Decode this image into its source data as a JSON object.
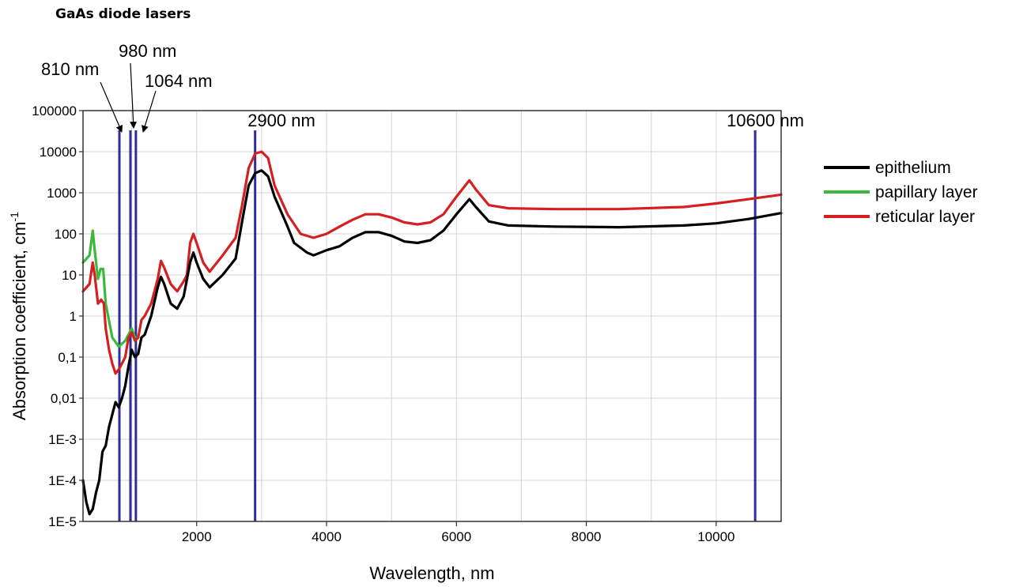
{
  "title": "GaAs diode lasers",
  "chart_data": {
    "type": "line",
    "xlabel": "Wavelength, nm",
    "ylabel": "Absorption coefficient, cm",
    "ylabel_sup": "-1",
    "xlim": [
      250,
      11000
    ],
    "ylim": [
      1e-05,
      100000
    ],
    "yscale": "log",
    "grid": true,
    "xticks": [
      {
        "v": 2000,
        "label": "2000"
      },
      {
        "v": 4000,
        "label": "4000"
      },
      {
        "v": 6000,
        "label": "6000"
      },
      {
        "v": 8000,
        "label": "8000"
      },
      {
        "v": 10000,
        "label": "10000"
      }
    ],
    "yticks": [
      {
        "v": 100000,
        "label": "100000"
      },
      {
        "v": 10000,
        "label": "10000"
      },
      {
        "v": 1000,
        "label": "1000"
      },
      {
        "v": 100,
        "label": "100"
      },
      {
        "v": 10,
        "label": "10"
      },
      {
        "v": 1,
        "label": "1"
      },
      {
        "v": 0.1,
        "label": "0,1"
      },
      {
        "v": 0.01,
        "label": "0,01"
      },
      {
        "v": 0.001,
        "label": "1E-3"
      },
      {
        "v": 0.0001,
        "label": "1E-4"
      },
      {
        "v": 1e-05,
        "label": "1E-5"
      }
    ],
    "legend_position": "right",
    "marker_color": "#2e2e9a",
    "markers": [
      {
        "x": 810,
        "label": "810 nm"
      },
      {
        "x": 980,
        "label": "980 nm"
      },
      {
        "x": 1064,
        "label": "1064 nm"
      },
      {
        "x": 2900,
        "label": "2900 nm"
      },
      {
        "x": 10600,
        "label": "10600 nm"
      }
    ],
    "series": [
      {
        "name": "papillary layer",
        "color": "#3cb83c",
        "points": [
          [
            250,
            20
          ],
          [
            350,
            30
          ],
          [
            400,
            120
          ],
          [
            430,
            40
          ],
          [
            480,
            8
          ],
          [
            520,
            14
          ],
          [
            560,
            14
          ],
          [
            600,
            2
          ],
          [
            700,
            0.3
          ],
          [
            800,
            0.18
          ],
          [
            900,
            0.25
          ],
          [
            1000,
            0.5
          ],
          [
            1050,
            0.3
          ],
          [
            1100,
            0.3
          ]
        ]
      },
      {
        "name": "reticular layer",
        "color": "#d42020",
        "points": [
          [
            250,
            4
          ],
          [
            350,
            6
          ],
          [
            400,
            20
          ],
          [
            430,
            10
          ],
          [
            480,
            2
          ],
          [
            530,
            2.5
          ],
          [
            570,
            2
          ],
          [
            600,
            0.5
          ],
          [
            650,
            0.15
          ],
          [
            700,
            0.07
          ],
          [
            750,
            0.04
          ],
          [
            800,
            0.05
          ],
          [
            850,
            0.07
          ],
          [
            900,
            0.1
          ],
          [
            950,
            0.3
          ],
          [
            1000,
            0.4
          ],
          [
            1050,
            0.25
          ],
          [
            1100,
            0.3
          ],
          [
            1150,
            0.8
          ],
          [
            1200,
            1
          ],
          [
            1300,
            2
          ],
          [
            1400,
            8
          ],
          [
            1450,
            22
          ],
          [
            1500,
            15
          ],
          [
            1600,
            6
          ],
          [
            1700,
            4
          ],
          [
            1800,
            7
          ],
          [
            1850,
            10
          ],
          [
            1900,
            60
          ],
          [
            1950,
            100
          ],
          [
            2000,
            60
          ],
          [
            2100,
            20
          ],
          [
            2200,
            12
          ],
          [
            2400,
            30
          ],
          [
            2600,
            80
          ],
          [
            2700,
            500
          ],
          [
            2800,
            4000
          ],
          [
            2900,
            9000
          ],
          [
            3000,
            10000
          ],
          [
            3100,
            7000
          ],
          [
            3200,
            1500
          ],
          [
            3400,
            300
          ],
          [
            3600,
            100
          ],
          [
            3800,
            80
          ],
          [
            4000,
            100
          ],
          [
            4200,
            150
          ],
          [
            4400,
            220
          ],
          [
            4600,
            300
          ],
          [
            4800,
            300
          ],
          [
            5000,
            250
          ],
          [
            5200,
            190
          ],
          [
            5400,
            170
          ],
          [
            5600,
            190
          ],
          [
            5800,
            300
          ],
          [
            6000,
            800
          ],
          [
            6200,
            2000
          ],
          [
            6300,
            1200
          ],
          [
            6500,
            500
          ],
          [
            6800,
            420
          ],
          [
            7500,
            400
          ],
          [
            8500,
            400
          ],
          [
            9500,
            450
          ],
          [
            10000,
            550
          ],
          [
            10500,
            700
          ],
          [
            11000,
            900
          ]
        ]
      },
      {
        "name": "epithelium",
        "color": "#000000",
        "points": [
          [
            250,
            0.0001
          ],
          [
            300,
            3e-05
          ],
          [
            350,
            1.5e-05
          ],
          [
            400,
            2e-05
          ],
          [
            450,
            5e-05
          ],
          [
            500,
            0.0001
          ],
          [
            550,
            0.0005
          ],
          [
            600,
            0.0007
          ],
          [
            650,
            0.002
          ],
          [
            700,
            0.004
          ],
          [
            750,
            0.008
          ],
          [
            800,
            0.006
          ],
          [
            850,
            0.01
          ],
          [
            900,
            0.02
          ],
          [
            950,
            0.06
          ],
          [
            1000,
            0.15
          ],
          [
            1050,
            0.1
          ],
          [
            1100,
            0.12
          ],
          [
            1150,
            0.3
          ],
          [
            1200,
            0.35
          ],
          [
            1300,
            1
          ],
          [
            1400,
            5
          ],
          [
            1450,
            9
          ],
          [
            1500,
            6
          ],
          [
            1600,
            2
          ],
          [
            1700,
            1.5
          ],
          [
            1800,
            3
          ],
          [
            1900,
            20
          ],
          [
            1950,
            35
          ],
          [
            2000,
            20
          ],
          [
            2100,
            8
          ],
          [
            2200,
            5
          ],
          [
            2400,
            10
          ],
          [
            2600,
            25
          ],
          [
            2700,
            200
          ],
          [
            2800,
            1500
          ],
          [
            2900,
            3000
          ],
          [
            3000,
            3500
          ],
          [
            3100,
            2500
          ],
          [
            3200,
            800
          ],
          [
            3400,
            150
          ],
          [
            3500,
            60
          ],
          [
            3700,
            35
          ],
          [
            3800,
            30
          ],
          [
            4000,
            40
          ],
          [
            4200,
            50
          ],
          [
            4400,
            80
          ],
          [
            4600,
            110
          ],
          [
            4800,
            110
          ],
          [
            5000,
            90
          ],
          [
            5200,
            65
          ],
          [
            5400,
            60
          ],
          [
            5600,
            70
          ],
          [
            5800,
            120
          ],
          [
            6000,
            300
          ],
          [
            6200,
            700
          ],
          [
            6300,
            450
          ],
          [
            6500,
            200
          ],
          [
            6800,
            160
          ],
          [
            7500,
            150
          ],
          [
            8500,
            145
          ],
          [
            9500,
            160
          ],
          [
            10000,
            180
          ],
          [
            10500,
            230
          ],
          [
            11000,
            320
          ]
        ]
      }
    ],
    "legend_order": [
      "epithelium",
      "papillary layer",
      "reticular layer"
    ]
  }
}
